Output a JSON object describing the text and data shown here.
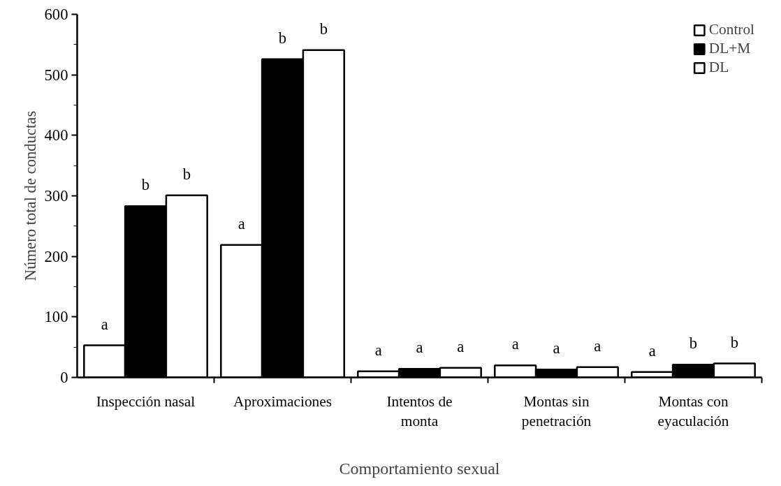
{
  "chart_data": {
    "type": "bar",
    "xlabel": "Comportamiento sexual",
    "ylabel": "Número total de conductas",
    "categories": [
      "Inspección nasal",
      "Aproximaciones",
      "Intentos de monta",
      "Montas sin penetración",
      "Montas con eyaculación"
    ],
    "series": [
      {
        "name": "Control",
        "color": "#ffffff",
        "values": [
          53,
          219,
          10,
          20,
          9
        ]
      },
      {
        "name": "DL+M",
        "color": "#000000",
        "values": [
          283,
          526,
          14,
          13,
          21
        ]
      },
      {
        "name": "DL",
        "color": "#ffffff",
        "values": [
          301,
          541,
          16,
          17,
          23
        ]
      }
    ],
    "ylim": [
      0,
      600
    ],
    "yticks": [
      0,
      100,
      200,
      300,
      400,
      500,
      600
    ],
    "grid": false,
    "legend": "top right",
    "annotations": [
      "a",
      "b",
      "b",
      "a",
      "b",
      "b",
      "a",
      "a",
      "a",
      "a",
      "a",
      "a",
      "a",
      "b",
      "b"
    ]
  }
}
